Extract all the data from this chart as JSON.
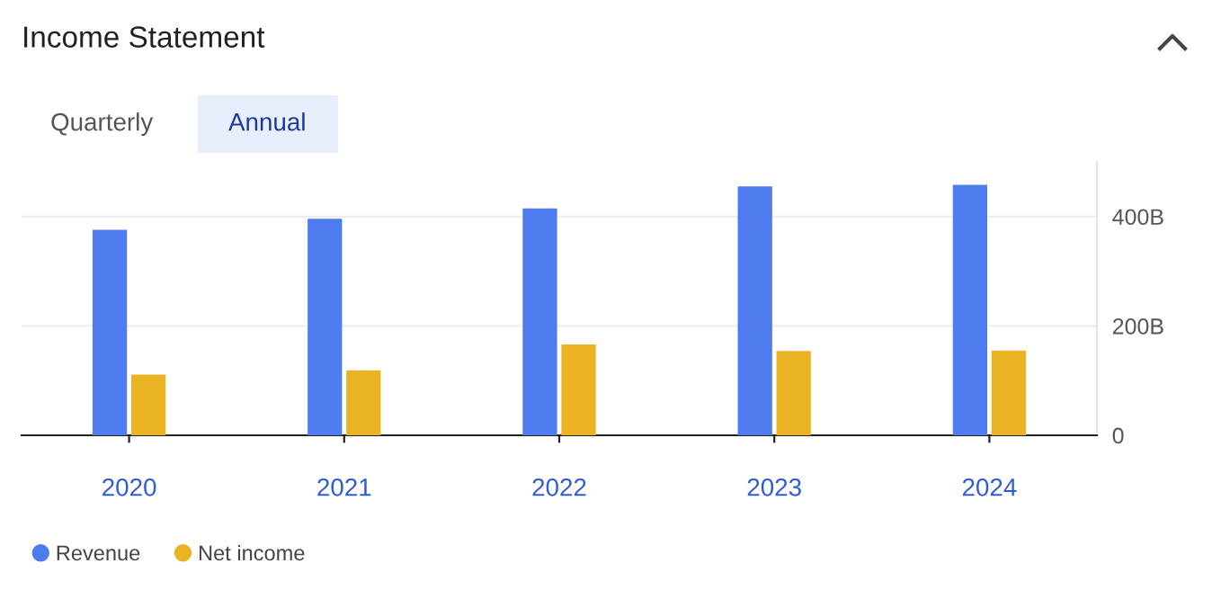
{
  "chart_data": {
    "type": "bar",
    "title": "Income Statement",
    "annotations": [
      "Quarterly",
      "Annual"
    ],
    "categories": [
      "2020",
      "2021",
      "2022",
      "2023",
      "2024"
    ],
    "series": [
      {
        "name": "Revenue",
        "color": "#4e7bee",
        "values": [
          376,
          396,
          415,
          455,
          458
        ]
      },
      {
        "name": "Net income",
        "color": "#e9b323",
        "values": [
          111,
          119,
          166,
          154,
          155
        ]
      }
    ],
    "ylim": [
      0,
      500
    ],
    "yticks": [
      {
        "value": 0,
        "label": "0"
      },
      {
        "value": 200,
        "label": "200B"
      },
      {
        "value": 400,
        "label": "400B"
      }
    ],
    "grid": "y",
    "legend": "bottom left"
  }
}
